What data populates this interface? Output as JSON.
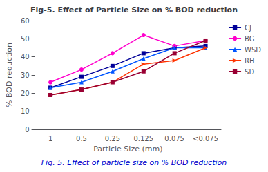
{
  "chart_data": {
    "type": "line",
    "title": "Fig-5. Effect of Particle Size on % BOD reduction",
    "xlabel": "Particle Size (mm)",
    "ylabel": "% BOD reduction",
    "caption": "Fig. 5. Effect of particle size on % BOD reduction",
    "categories": [
      "1",
      "0.5",
      "0.25",
      "0.125",
      "0.075",
      "<0.075"
    ],
    "series": [
      {
        "name": "CJ",
        "color": "#000099",
        "marker": "square",
        "values": [
          23,
          29,
          35,
          42,
          45,
          46
        ]
      },
      {
        "name": "BG",
        "color": "#ff00cc",
        "marker": "circle",
        "values": [
          26,
          33,
          42,
          52,
          46,
          49
        ]
      },
      {
        "name": "WSD",
        "color": "#0055ff",
        "marker": "triangle-up",
        "values": [
          23,
          26,
          32,
          39,
          45,
          45
        ]
      },
      {
        "name": "RH",
        "color": "#ff3300",
        "marker": "triangle-right",
        "values": [
          19,
          22,
          26,
          36,
          38,
          45
        ]
      },
      {
        "name": "SD",
        "color": "#990033",
        "marker": "square",
        "values": [
          19,
          22,
          26,
          32,
          42,
          49
        ]
      }
    ],
    "ylim": [
      0,
      60
    ],
    "yticks": [
      0,
      10,
      20,
      30,
      40,
      50,
      60
    ],
    "grid": false,
    "legend": "right"
  }
}
